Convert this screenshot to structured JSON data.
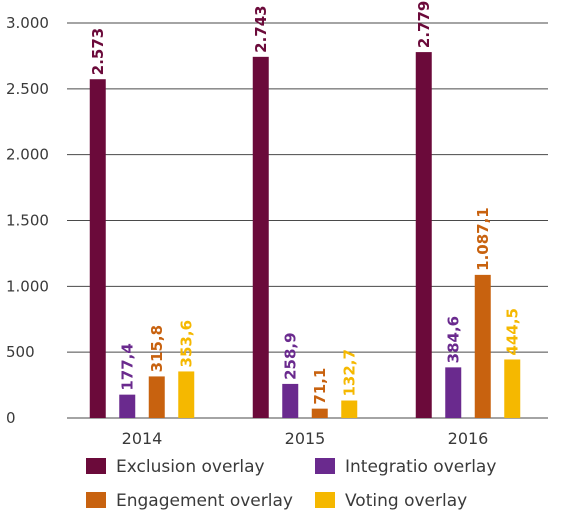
{
  "chart_data": {
    "type": "bar",
    "categories": [
      "2014",
      "2015",
      "2016"
    ],
    "series": [
      {
        "name": "Exclusion overlay",
        "color": "#6b0a3a",
        "values": [
          2573,
          2743,
          2779
        ],
        "labels": [
          "2.573",
          "2.743",
          "2.779"
        ]
      },
      {
        "name": "Integratio overlay",
        "color": "#6a2a8e",
        "values": [
          177.4,
          258.9,
          384.6
        ],
        "labels": [
          "177,4",
          "258,9",
          "384,6"
        ]
      },
      {
        "name": "Engagement overlay",
        "color": "#c8620f",
        "values": [
          315.8,
          71.1,
          1087.1
        ],
        "labels": [
          "315,8",
          "71,1",
          "1.087,1"
        ]
      },
      {
        "name": "Voting overlay",
        "color": "#f5b800",
        "values": [
          353.6,
          132.7,
          444.5
        ],
        "labels": [
          "353,6",
          "132,7",
          "444,5"
        ]
      }
    ],
    "ylim": [
      0,
      3000
    ],
    "yticks": [
      0,
      500,
      1000,
      1500,
      2000,
      2500,
      3000
    ],
    "ytick_labels": [
      "0",
      "500",
      "1.000",
      "1.500",
      "2.000",
      "2.500",
      "3.000"
    ],
    "grid": true,
    "legend_position": "bottom"
  }
}
